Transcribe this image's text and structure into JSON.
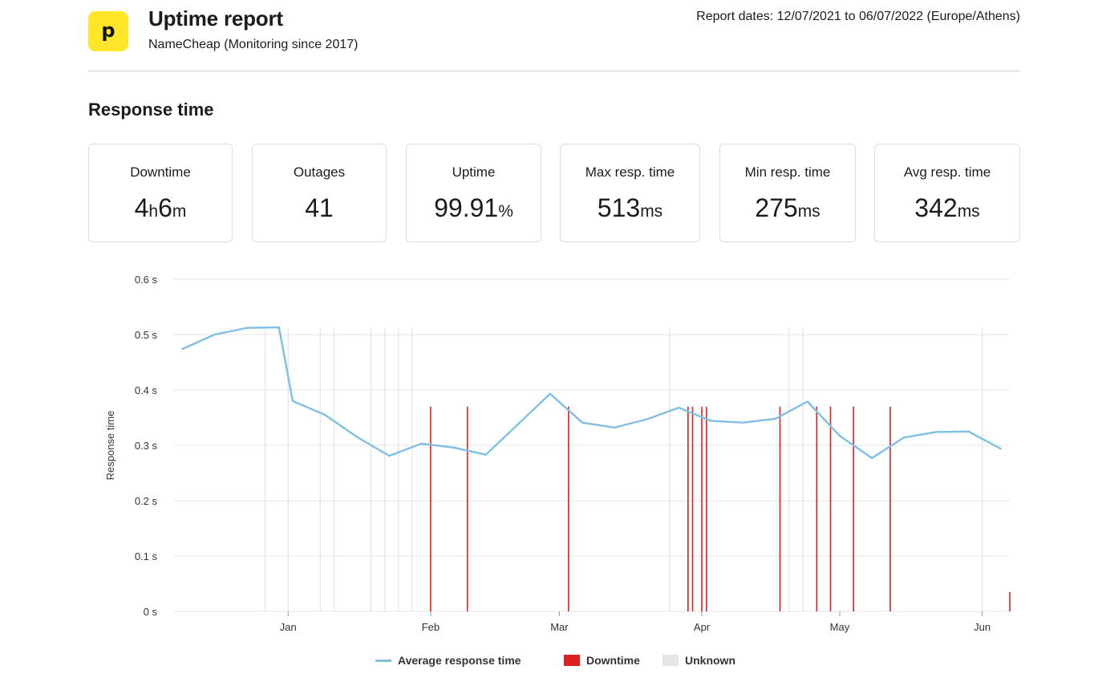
{
  "header": {
    "logo_letter": "p",
    "title": "Uptime report",
    "subtitle": "NameCheap (Monitoring since 2017)",
    "report_dates": "Report dates: 12/07/2021 to 06/07/2022 (Europe/Athens)"
  },
  "section_title": "Response time",
  "stats": {
    "downtime": {
      "label": "Downtime",
      "hours": "4",
      "h_unit": "h",
      "minutes": "6",
      "m_unit": "m"
    },
    "outages": {
      "label": "Outages",
      "value": "41"
    },
    "uptime": {
      "label": "Uptime",
      "value": "99.91",
      "unit": "%"
    },
    "max_resp": {
      "label": "Max resp. time",
      "value": "513",
      "unit": "ms"
    },
    "min_resp": {
      "label": "Min resp. time",
      "value": "275",
      "unit": "ms"
    },
    "avg_resp": {
      "label": "Avg resp. time",
      "value": "342",
      "unit": "ms"
    }
  },
  "legend": {
    "line": "Average response time",
    "downtime": "Downtime",
    "unknown": "Unknown"
  },
  "colors": {
    "line": "#7fbfe4",
    "downtime": "#dc2020",
    "unknown": "#e6e6e6",
    "grid": "#e5e5e5",
    "logo": "#ffe629"
  },
  "chart_data": {
    "type": "line",
    "ylabel": "Response time",
    "ylim": [
      0,
      0.6
    ],
    "y_ticks": [
      "0 s",
      "0.1 s",
      "0.2 s",
      "0.3 s",
      "0.4 s",
      "0.5 s",
      "0.6 s"
    ],
    "y_tick_values": [
      0,
      0.1,
      0.2,
      0.3,
      0.4,
      0.5,
      0.6
    ],
    "xlim": [
      "2021-12-07",
      "2022-06-07"
    ],
    "x_ticks": [
      {
        "label": "Jan",
        "date": "2022-01-01"
      },
      {
        "label": "Feb",
        "date": "2022-02-01"
      },
      {
        "label": "Mar",
        "date": "2022-03-01"
      },
      {
        "label": "Apr",
        "date": "2022-04-01"
      },
      {
        "label": "May",
        "date": "2022-05-01"
      },
      {
        "label": "Jun",
        "date": "2022-06-01"
      }
    ],
    "grid": true,
    "legend_position": "bottom",
    "series": [
      {
        "name": "Average response time",
        "points": [
          [
            "2021-12-09",
            0.474
          ],
          [
            "2021-12-16",
            0.5
          ],
          [
            "2021-12-23",
            0.512
          ],
          [
            "2021-12-30",
            0.513
          ],
          [
            "2022-01-02",
            0.38
          ],
          [
            "2022-01-09",
            0.355
          ],
          [
            "2022-01-16",
            0.315
          ],
          [
            "2022-01-23",
            0.281
          ],
          [
            "2022-01-30",
            0.303
          ],
          [
            "2022-02-06",
            0.296
          ],
          [
            "2022-02-13",
            0.283
          ],
          [
            "2022-02-20",
            0.338
          ],
          [
            "2022-02-27",
            0.393
          ],
          [
            "2022-03-06",
            0.341
          ],
          [
            "2022-03-13",
            0.332
          ],
          [
            "2022-03-20",
            0.347
          ],
          [
            "2022-03-27",
            0.368
          ],
          [
            "2022-04-03",
            0.344
          ],
          [
            "2022-04-10",
            0.341
          ],
          [
            "2022-04-17",
            0.348
          ],
          [
            "2022-04-24",
            0.379
          ],
          [
            "2022-05-01",
            0.317
          ],
          [
            "2022-05-08",
            0.277
          ],
          [
            "2022-05-15",
            0.314
          ],
          [
            "2022-05-22",
            0.324
          ],
          [
            "2022-05-29",
            0.325
          ],
          [
            "2022-06-05",
            0.294
          ]
        ]
      }
    ],
    "downtime_days": [
      "2022-02-01",
      "2022-02-09",
      "2022-03-03",
      "2022-03-29",
      "2022-03-30",
      "2022-04-01",
      "2022-04-02",
      "2022-04-18",
      "2022-04-26",
      "2022-04-29",
      "2022-05-04",
      "2022-05-12",
      "2022-06-07"
    ],
    "unknown_days": [
      "2021-12-27",
      "2022-01-01",
      "2022-01-08",
      "2022-01-11",
      "2022-01-19",
      "2022-01-22",
      "2022-01-25",
      "2022-01-28",
      "2022-03-25",
      "2022-04-20",
      "2022-04-23",
      "2022-06-01"
    ]
  }
}
